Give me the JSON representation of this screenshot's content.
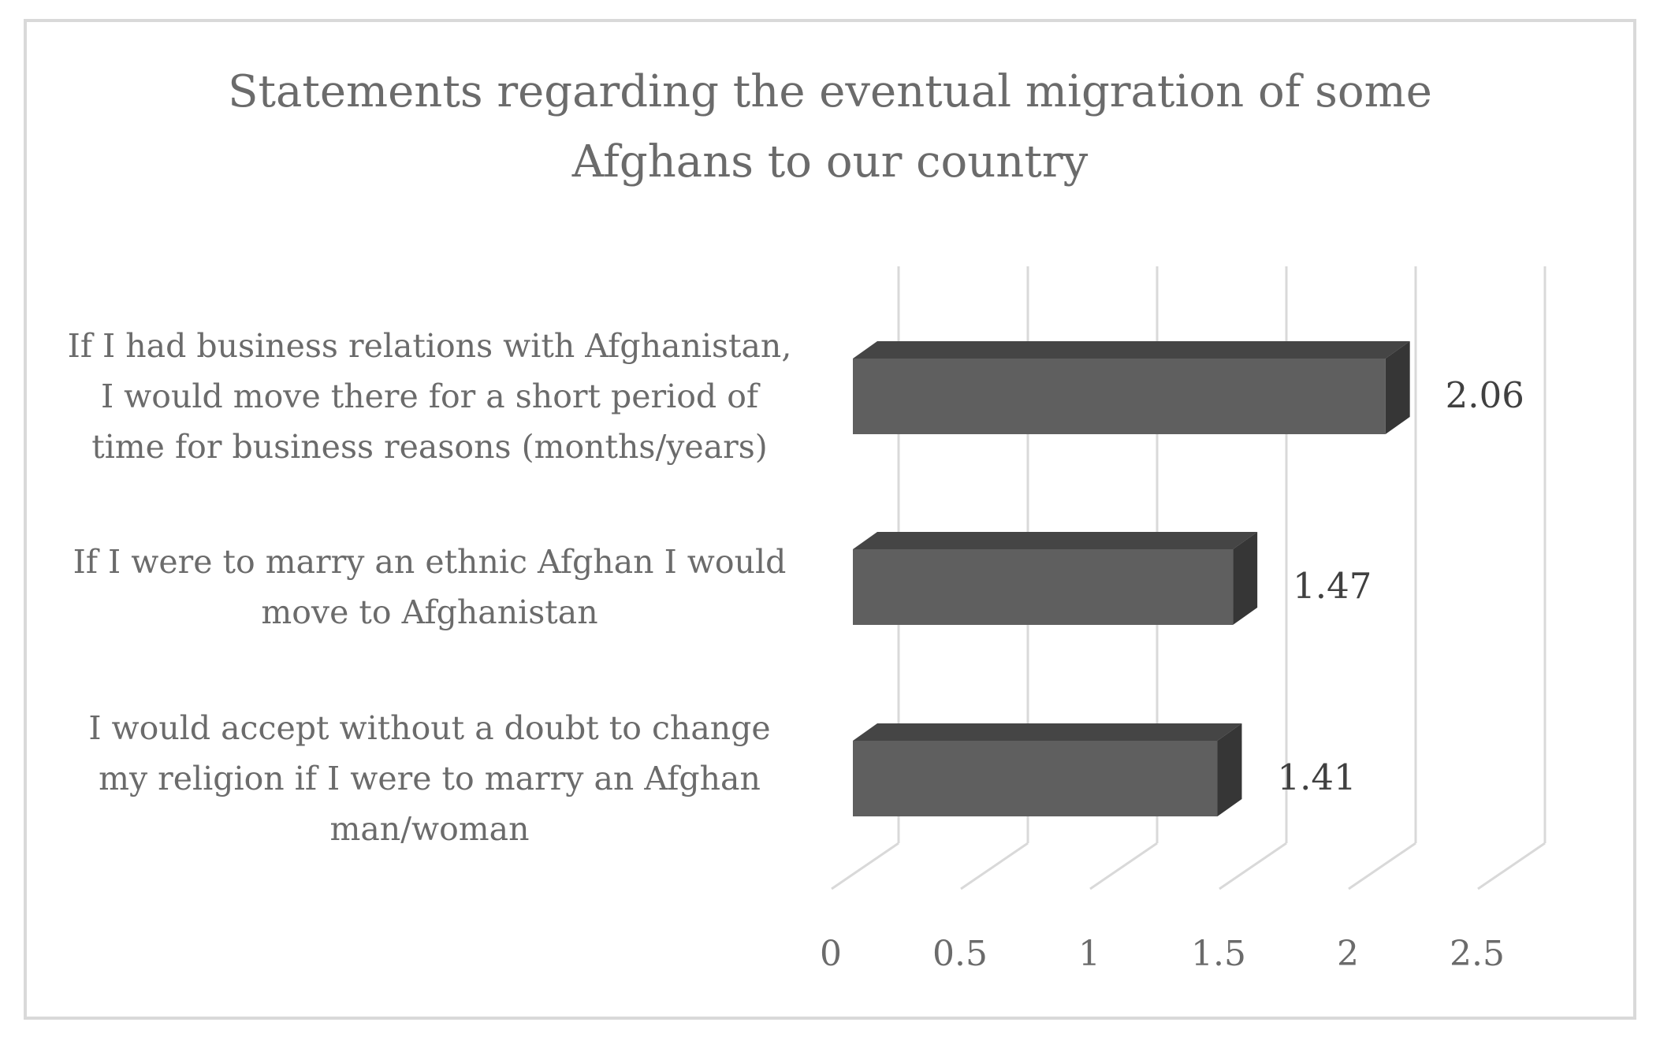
{
  "chart_data": {
    "type": "bar",
    "orientation": "horizontal",
    "style": "3d",
    "title": "Statements regarding the eventual migration of some Afghans to our country",
    "title_lines": [
      "Statements regarding the eventual migration of some",
      "Afghans to our country"
    ],
    "categories": [
      "If I had business relations with Afghanistan, I would move there for a short period of time for business reasons (months/years)",
      "If I were to marry an ethnic Afghan I would move to Afghanistan",
      "I would accept without a doubt to change my religion if I were to marry an Afghan man/woman"
    ],
    "category_lines": [
      [
        "If I had business relations with Afghanistan,",
        "I would move there for a short period of",
        "time for business reasons (months/years)"
      ],
      [
        "If I were to marry an ethnic Afghan I would",
        "move to Afghanistan"
      ],
      [
        "I would accept without a doubt to change",
        "my religion if I were to marry an Afghan",
        "man/woman"
      ]
    ],
    "values": [
      2.06,
      1.47,
      1.41
    ],
    "data_labels": [
      "2.06",
      "1.47",
      "1.41"
    ],
    "xlim": [
      0,
      2.5
    ],
    "x_ticks": [
      0,
      0.5,
      1,
      1.5,
      2,
      2.5
    ],
    "x_tick_labels": [
      "0",
      "0.5",
      "1",
      "1.5",
      "2",
      "2.5"
    ],
    "xlabel": "",
    "ylabel": "",
    "grid": true,
    "legend": "none",
    "colors": {
      "bar_front": "#5f5f5f",
      "bar_top": "#454545",
      "bar_side": "#363636",
      "grid": "#d9d9d9",
      "text": "#6b6b6b",
      "label_text": "#404040",
      "frame": "#d9d9d9"
    }
  }
}
